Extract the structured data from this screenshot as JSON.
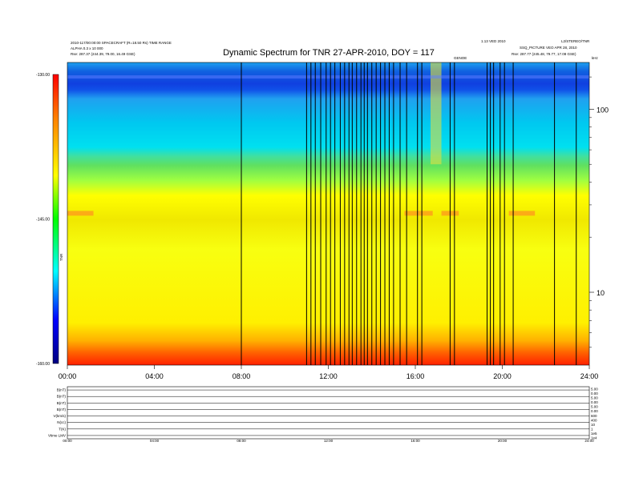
{
  "header": {
    "title": "Dynamic Spectrum for TNR 27-APR-2010, DOY = 117",
    "left_line1": "2010-117/00:00:00  SPACECRAFT (R=18.50 Rs)  TIME RANGE",
    "left_line2": "ALPHA 0.3 x 10 000",
    "left_rse": "Rse:   287.37 (244.39, 79.00, 16.49 GSE)",
    "right_line1": "1.13 VED 2010",
    "right_line2": "L2/STEREO/TNR",
    "right_line3": "SSQ_PICTURE  VEO APR 28, 2010",
    "right_rse": "Rse:   287.77 (245.48, 79.77, 17.08 GSE)",
    "mid_note": "GENOE"
  },
  "chart_data": {
    "type": "heatmap",
    "title": "Dynamic Spectrum for TNR 27-APR-2010, DOY = 117",
    "x_ticks": [
      "00:00",
      "04:00",
      "08:00",
      "12:00",
      "16:00",
      "20:00",
      "24:00"
    ],
    "x_range_hours": [
      0,
      24
    ],
    "y_scale": "log",
    "y_unit": "kHz",
    "y_ticks": [
      {
        "label": "100",
        "value": 100
      },
      {
        "label": "10",
        "value": 10
      }
    ],
    "y_range_khz": [
      4,
      180
    ],
    "colorbar": {
      "label": "TNR",
      "ticks": [
        "-130.00",
        "-145.00",
        "-160.00"
      ],
      "range": [
        -160,
        -130
      ],
      "colors": [
        "#000080",
        "#0000ff",
        "#00ffff",
        "#00ff00",
        "#ffff00",
        "#ff8000",
        "#ff0000"
      ]
    },
    "dropout_times_hours": [
      8.0,
      11.0,
      11.2,
      11.4,
      11.65,
      11.9,
      12.1,
      12.3,
      12.55,
      12.75,
      12.95,
      13.1,
      13.3,
      13.5,
      13.65,
      13.8,
      14.0,
      14.2,
      14.4,
      14.6,
      14.8,
      15.0,
      15.3,
      15.6,
      16.1,
      16.3,
      17.6,
      17.8,
      19.3,
      19.45,
      19.6,
      19.9,
      20.1,
      20.5,
      22.4,
      23.4
    ],
    "background_profile": [
      {
        "khz": 180,
        "dbm": -131
      },
      {
        "khz": 150,
        "dbm": -132
      },
      {
        "khz": 120,
        "dbm": -131
      },
      {
        "khz": 60,
        "dbm": -139
      },
      {
        "khz": 40,
        "dbm": -142
      },
      {
        "khz": 25,
        "dbm": -145
      },
      {
        "khz": 10,
        "dbm": -147
      },
      {
        "khz": 5,
        "dbm": -152
      },
      {
        "khz": 4,
        "dbm": -157
      }
    ]
  },
  "lower_panel": {
    "labels": [
      "B(nT)",
      "B(nT)",
      "B(nT)",
      "B(nT)",
      "V(km/s)",
      "N(cc)",
      "T(K)",
      "Vtime  LMV"
    ],
    "right_labels": [
      "5.00",
      "0.00",
      "5.00",
      "0.00",
      "5.00",
      "0.00",
      "600",
      "400",
      "10",
      "1",
      "1e5",
      "1e4"
    ]
  }
}
